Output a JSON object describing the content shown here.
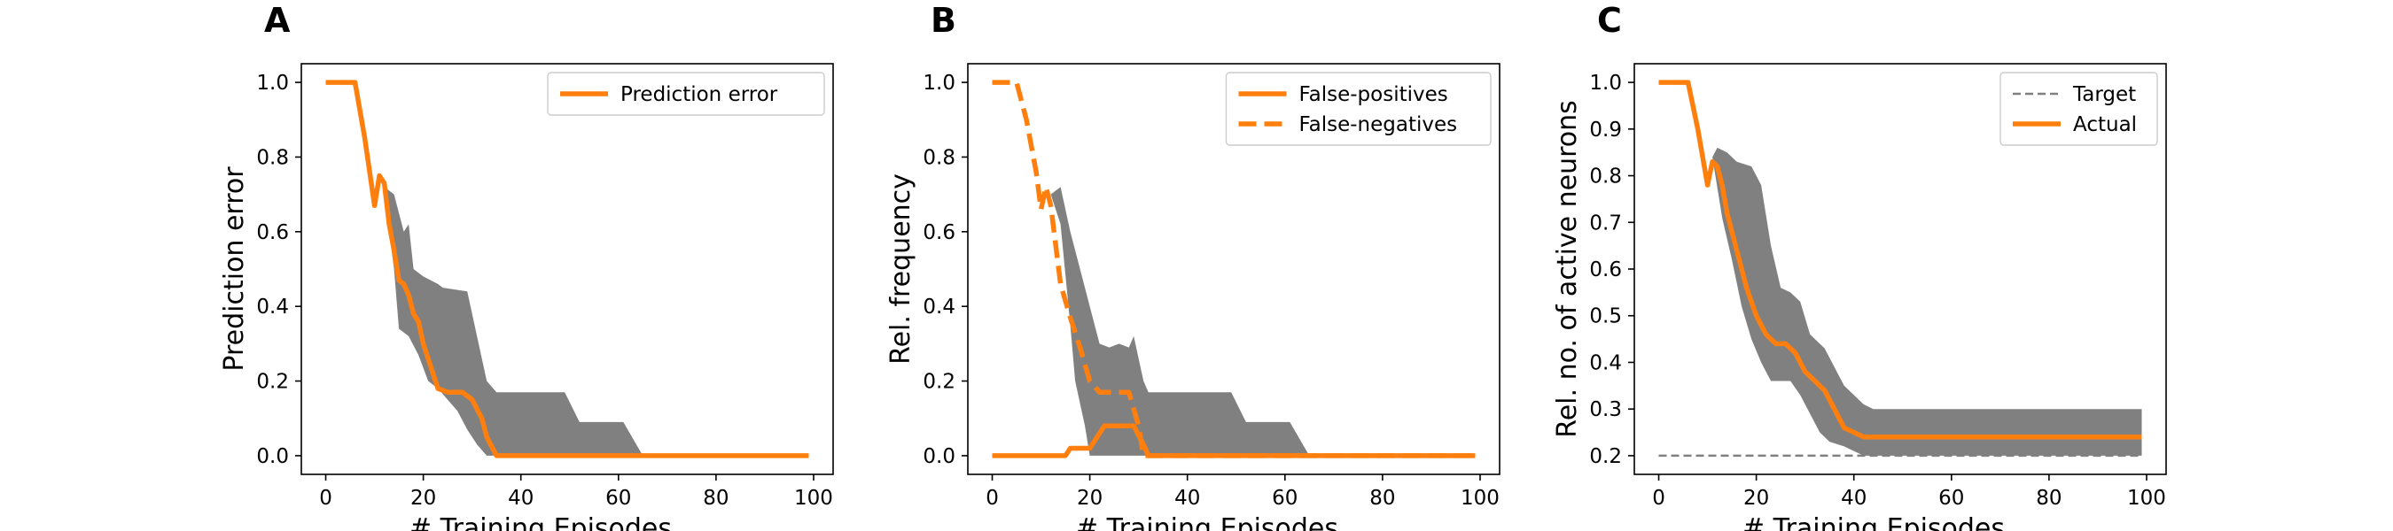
{
  "colors": {
    "line": "#ff7f0e",
    "band": "#808080",
    "target": "#808080",
    "axis": "#000000"
  },
  "chart_data": [
    {
      "type": "line",
      "panel_label": "A",
      "xlabel": "# Training Episodes",
      "ylabel": "Prediction error",
      "xlim": [
        -5,
        104
      ],
      "ylim": [
        -0.05,
        1.05
      ],
      "xticks": [
        0,
        20,
        40,
        60,
        80,
        100
      ],
      "yticks": [
        0.0,
        0.2,
        0.4,
        0.6,
        0.8,
        1.0
      ],
      "ytick_labels": [
        "0.0",
        "0.2",
        "0.4",
        "0.6",
        "0.8",
        "1.0"
      ],
      "grid": false,
      "legend_position": "top-right",
      "series": [
        {
          "name": "Prediction error",
          "style": "solid",
          "points": [
            [
              0,
              1.0
            ],
            [
              6,
              1.0
            ],
            [
              8,
              0.85
            ],
            [
              10,
              0.67
            ],
            [
              11,
              0.75
            ],
            [
              12,
              0.73
            ],
            [
              13,
              0.62
            ],
            [
              14,
              0.55
            ],
            [
              15,
              0.47
            ],
            [
              16,
              0.46
            ],
            [
              17,
              0.43
            ],
            [
              18,
              0.38
            ],
            [
              19,
              0.36
            ],
            [
              20,
              0.3
            ],
            [
              22,
              0.22
            ],
            [
              23,
              0.18
            ],
            [
              25,
              0.17
            ],
            [
              28,
              0.17
            ],
            [
              30,
              0.15
            ],
            [
              32,
              0.1
            ],
            [
              33,
              0.05
            ],
            [
              35,
              0.0
            ],
            [
              99,
              0.0
            ]
          ]
        }
      ],
      "bands": [
        {
          "lower": [
            [
              12,
              0.72
            ],
            [
              13,
              0.6
            ],
            [
              14,
              0.5
            ],
            [
              15,
              0.34
            ],
            [
              17,
              0.32
            ],
            [
              19,
              0.27
            ],
            [
              21,
              0.2
            ],
            [
              23,
              0.18
            ],
            [
              25,
              0.15
            ],
            [
              27,
              0.12
            ],
            [
              29,
              0.07
            ],
            [
              31,
              0.03
            ],
            [
              33,
              0.0
            ],
            [
              65,
              0.0
            ]
          ],
          "upper": [
            [
              12,
              0.72
            ],
            [
              14,
              0.7
            ],
            [
              16,
              0.6
            ],
            [
              17,
              0.62
            ],
            [
              18,
              0.5
            ],
            [
              20,
              0.48
            ],
            [
              23,
              0.46
            ],
            [
              24,
              0.45
            ],
            [
              29,
              0.44
            ],
            [
              33,
              0.2
            ],
            [
              35,
              0.17
            ],
            [
              49,
              0.17
            ],
            [
              52,
              0.09
            ],
            [
              61,
              0.09
            ],
            [
              65,
              0.0
            ]
          ]
        }
      ]
    },
    {
      "type": "line",
      "panel_label": "B",
      "xlabel": "# Training Episodes",
      "ylabel": "Rel. frequency",
      "xlim": [
        -5,
        104
      ],
      "ylim": [
        -0.05,
        1.05
      ],
      "xticks": [
        0,
        20,
        40,
        60,
        80,
        100
      ],
      "yticks": [
        0.0,
        0.2,
        0.4,
        0.6,
        0.8,
        1.0
      ],
      "ytick_labels": [
        "0.0",
        "0.2",
        "0.4",
        "0.6",
        "0.8",
        "1.0"
      ],
      "grid": false,
      "legend_position": "top-right",
      "series": [
        {
          "name": "False-positives",
          "style": "solid",
          "points": [
            [
              0,
              0.0
            ],
            [
              15,
              0.0
            ],
            [
              16,
              0.02
            ],
            [
              20,
              0.02
            ],
            [
              21,
              0.04
            ],
            [
              22,
              0.06
            ],
            [
              23,
              0.08
            ],
            [
              29,
              0.08
            ],
            [
              31,
              0.03
            ],
            [
              32,
              0.0
            ],
            [
              99,
              0.0
            ]
          ]
        },
        {
          "name": "False-negatives",
          "style": "dashed",
          "points": [
            [
              0,
              1.0
            ],
            [
              5,
              1.0
            ],
            [
              7,
              0.9
            ],
            [
              9,
              0.76
            ],
            [
              10,
              0.66
            ],
            [
              11,
              0.72
            ],
            [
              12,
              0.67
            ],
            [
              14,
              0.46
            ],
            [
              16,
              0.37
            ],
            [
              18,
              0.29
            ],
            [
              20,
              0.2
            ],
            [
              22,
              0.17
            ],
            [
              28,
              0.17
            ],
            [
              30,
              0.08
            ],
            [
              31,
              0.0
            ],
            [
              99,
              0.0
            ]
          ]
        }
      ],
      "bands": [
        {
          "lower": [
            [
              12,
              0.7
            ],
            [
              14,
              0.62
            ],
            [
              16,
              0.35
            ],
            [
              17,
              0.2
            ],
            [
              19,
              0.08
            ],
            [
              20,
              0.0
            ],
            [
              65,
              0.0
            ]
          ],
          "upper": [
            [
              12,
              0.7
            ],
            [
              14,
              0.72
            ],
            [
              16,
              0.6
            ],
            [
              18,
              0.5
            ],
            [
              20,
              0.4
            ],
            [
              22,
              0.3
            ],
            [
              24,
              0.29
            ],
            [
              26,
              0.3
            ],
            [
              28,
              0.29
            ],
            [
              29,
              0.32
            ],
            [
              31,
              0.2
            ],
            [
              32,
              0.17
            ],
            [
              49,
              0.17
            ],
            [
              52,
              0.09
            ],
            [
              61,
              0.09
            ],
            [
              65,
              0.0
            ]
          ]
        }
      ]
    },
    {
      "type": "line",
      "panel_label": "C",
      "xlabel": "# Training Episodes",
      "ylabel": "Rel. no. of active neurons",
      "xlim": [
        -5,
        104
      ],
      "ylim": [
        0.16,
        1.04
      ],
      "xticks": [
        0,
        20,
        40,
        60,
        80,
        100
      ],
      "yticks": [
        0.2,
        0.3,
        0.4,
        0.5,
        0.6,
        0.7,
        0.8,
        0.9,
        1.0
      ],
      "ytick_labels": [
        "0.2",
        "0.3",
        "0.4",
        "0.5",
        "0.6",
        "0.7",
        "0.8",
        "0.9",
        "1.0"
      ],
      "grid": false,
      "legend_position": "top-right",
      "series": [
        {
          "name": "Target",
          "style": "dashed-thin",
          "points": [
            [
              0,
              0.2
            ],
            [
              99,
              0.2
            ]
          ]
        },
        {
          "name": "Actual",
          "style": "solid",
          "points": [
            [
              0,
              1.0
            ],
            [
              6,
              1.0
            ],
            [
              8,
              0.9
            ],
            [
              10,
              0.78
            ],
            [
              11,
              0.83
            ],
            [
              12,
              0.82
            ],
            [
              13,
              0.78
            ],
            [
              14,
              0.72
            ],
            [
              16,
              0.64
            ],
            [
              18,
              0.56
            ],
            [
              20,
              0.5
            ],
            [
              22,
              0.46
            ],
            [
              24,
              0.44
            ],
            [
              26,
              0.44
            ],
            [
              28,
              0.42
            ],
            [
              30,
              0.38
            ],
            [
              32,
              0.36
            ],
            [
              34,
              0.34
            ],
            [
              36,
              0.3
            ],
            [
              38,
              0.26
            ],
            [
              40,
              0.25
            ],
            [
              42,
              0.24
            ],
            [
              99,
              0.24
            ]
          ]
        }
      ],
      "bands": [
        {
          "lower": [
            [
              11,
              0.84
            ],
            [
              13,
              0.71
            ],
            [
              15,
              0.62
            ],
            [
              17,
              0.52
            ],
            [
              19,
              0.45
            ],
            [
              21,
              0.4
            ],
            [
              23,
              0.36
            ],
            [
              27,
              0.36
            ],
            [
              29,
              0.33
            ],
            [
              31,
              0.29
            ],
            [
              33,
              0.25
            ],
            [
              35,
              0.23
            ],
            [
              38,
              0.22
            ],
            [
              42,
              0.2
            ],
            [
              99,
              0.2
            ]
          ],
          "upper": [
            [
              11,
              0.84
            ],
            [
              12,
              0.86
            ],
            [
              14,
              0.85
            ],
            [
              16,
              0.83
            ],
            [
              19,
              0.82
            ],
            [
              21,
              0.78
            ],
            [
              23,
              0.65
            ],
            [
              25,
              0.56
            ],
            [
              27,
              0.55
            ],
            [
              29,
              0.53
            ],
            [
              31,
              0.46
            ],
            [
              34,
              0.43
            ],
            [
              36,
              0.39
            ],
            [
              38,
              0.35
            ],
            [
              42,
              0.31
            ],
            [
              44,
              0.3
            ],
            [
              99,
              0.3
            ]
          ]
        }
      ]
    }
  ]
}
